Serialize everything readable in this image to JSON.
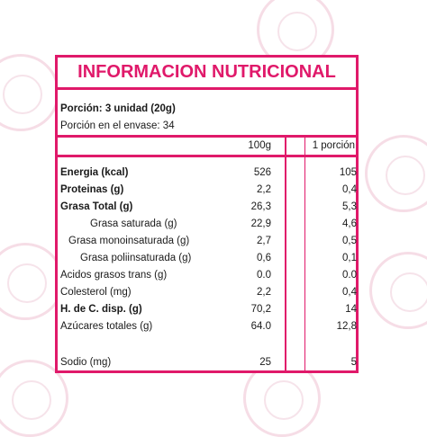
{
  "title": "INFORMACION NUTRICIONAL",
  "serving": {
    "portion": "Porción: 3 unidad (20g)",
    "per_package": "Porción en el envase: 34"
  },
  "columns": {
    "per100": "100g",
    "per_portion": "1 porción"
  },
  "rows": [
    {
      "label": "Energia (kcal)",
      "v100": "526",
      "vportion": "105",
      "bold": true
    },
    {
      "label": "Proteinas (g)",
      "v100": "2,2",
      "vportion": "0,4",
      "bold": true
    },
    {
      "label": "Grasa Total (g)",
      "v100": "26,3",
      "vportion": "5,3",
      "bold": true
    },
    {
      "label": "Grasa saturada (g)",
      "v100": "22,9",
      "vportion": "4,6",
      "bold": false
    },
    {
      "label": "Grasa monoinsaturada (g)",
      "v100": "2,7",
      "vportion": "0,5",
      "bold": false
    },
    {
      "label": "Grasa poliinsaturada (g)",
      "v100": "0,6",
      "vportion": "0,1",
      "bold": false
    },
    {
      "label": "Acidos grasos  trans (g)",
      "v100": "0.0",
      "vportion": "0.0",
      "bold": false
    },
    {
      "label": "Colesterol (mg)",
      "v100": "2,2",
      "vportion": "0,4",
      "bold": false
    },
    {
      "label": "H. de C. disp. (g)",
      "v100": "70,2",
      "vportion": "14",
      "bold": true
    },
    {
      "label": "Azúcares totales (g)",
      "v100": "64.0",
      "vportion": "12,8",
      "bold": false
    },
    {
      "label": "Sodio (mg)",
      "v100": "25",
      "vportion": "5",
      "bold": false
    }
  ],
  "colors": {
    "accent": "#e0196a",
    "text": "#1a1a1a"
  },
  "background_watermark_icon": "stamp-logo-icon"
}
